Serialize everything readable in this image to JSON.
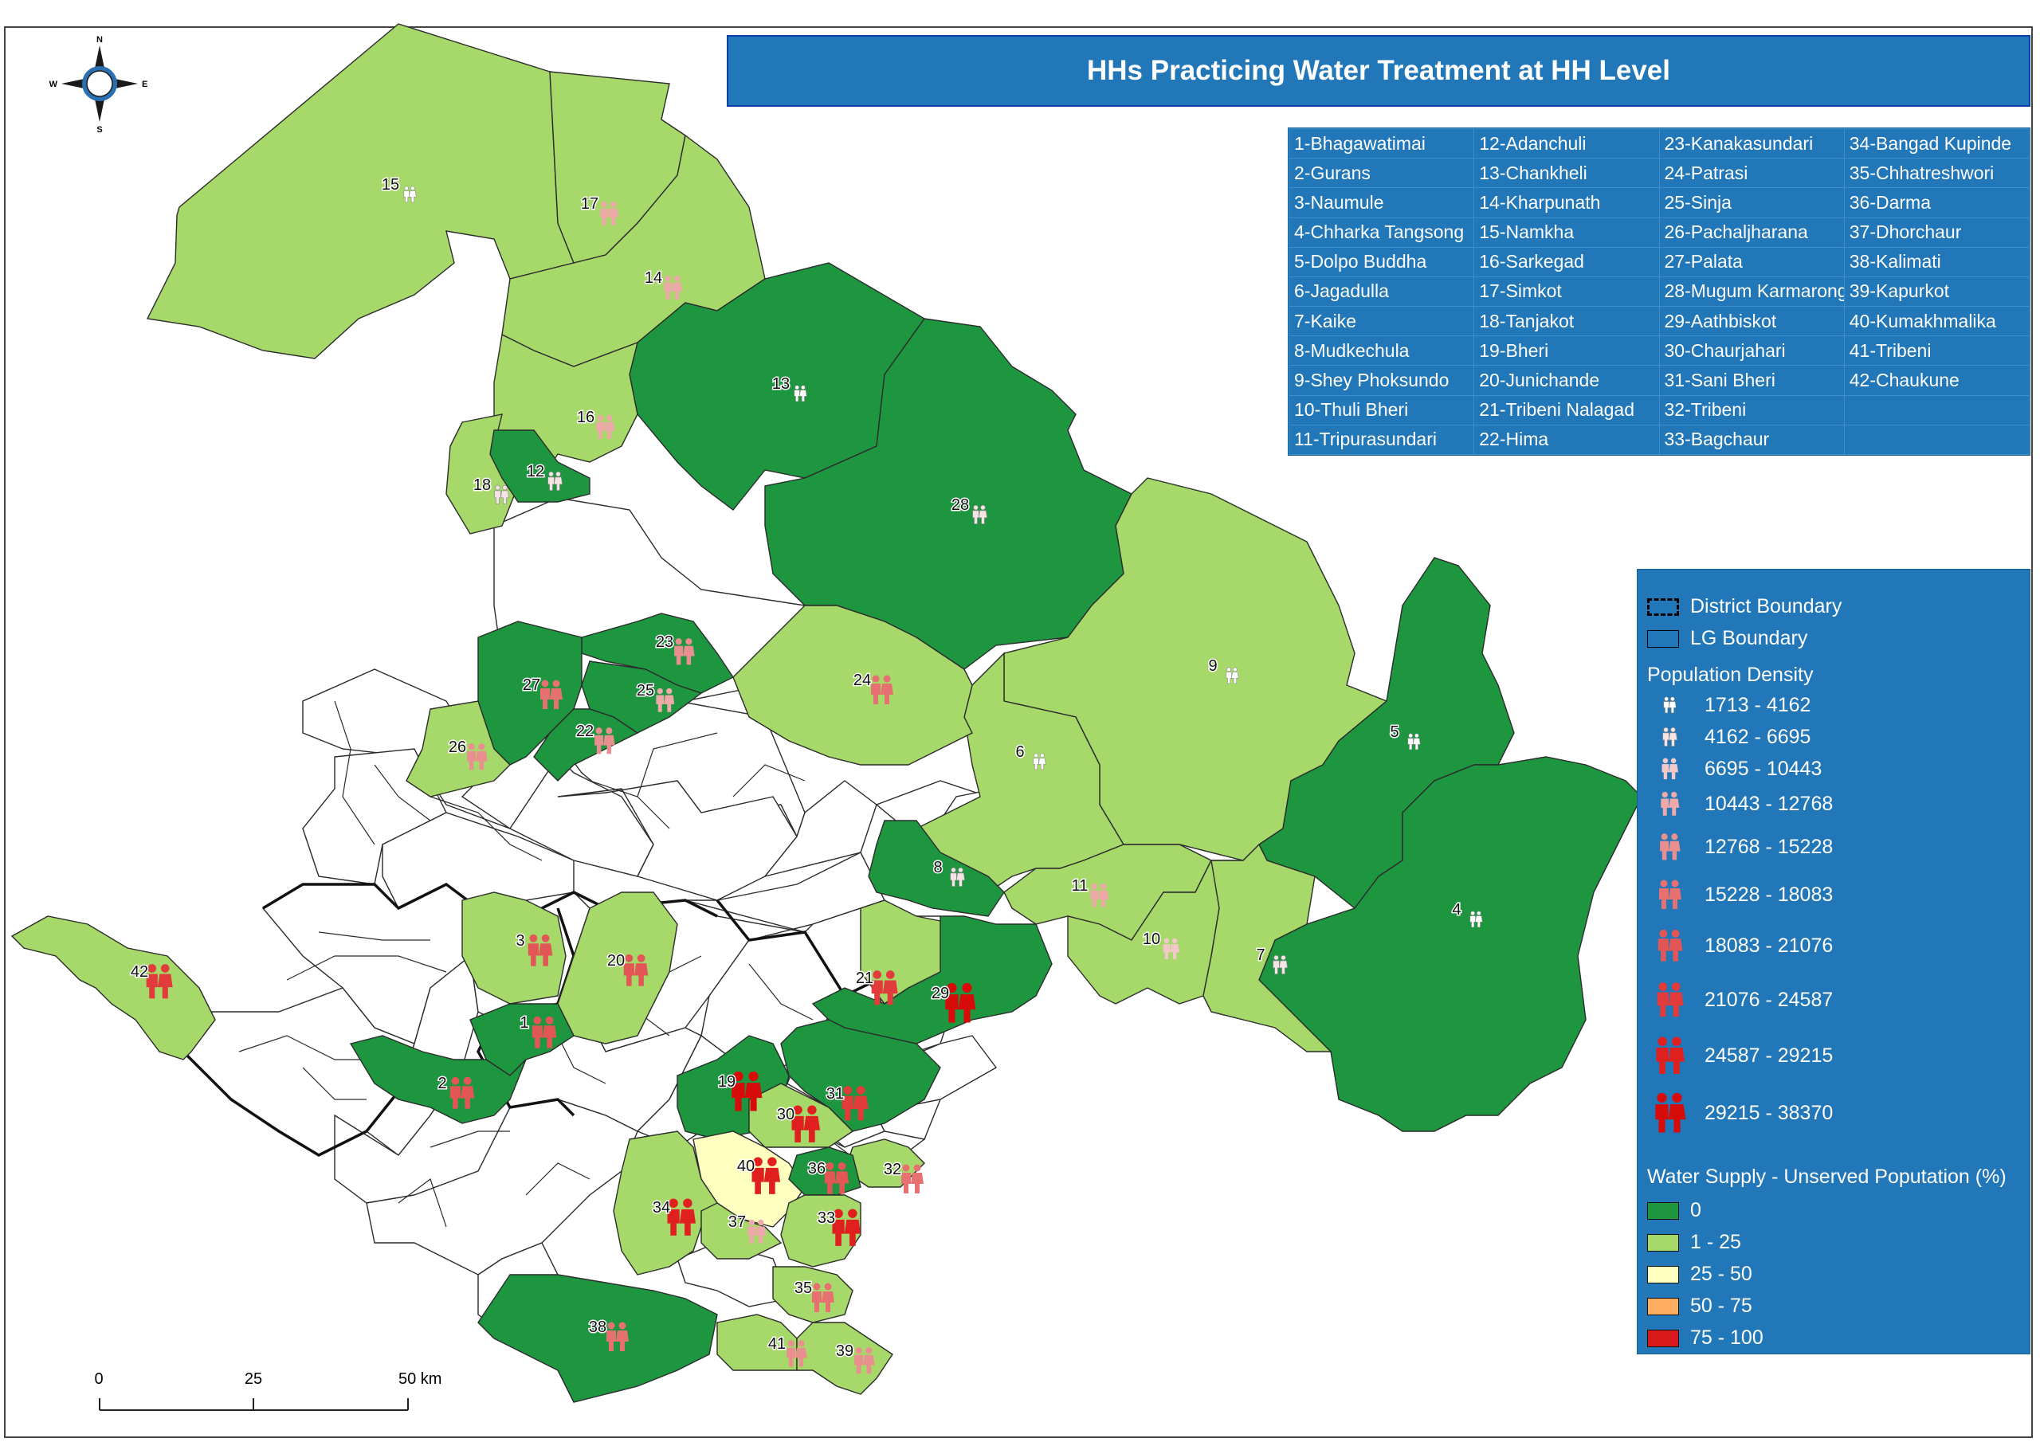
{
  "title": "HHs Practicing Water Treatment at HH Level",
  "compass": {
    "n": "N",
    "s": "S",
    "e": "E",
    "w": "W"
  },
  "scale": {
    "t0": "0",
    "t1": "25",
    "t2": "50 km"
  },
  "municipalities": [
    [
      "1-Bhagawatimai",
      "12-Adanchuli",
      "23-Kanakasundari",
      "34-Bangad Kupinde"
    ],
    [
      "2-Gurans",
      "13-Chankheli",
      "24-Patrasi",
      "35-Chhatreshwori"
    ],
    [
      "3-Naumule",
      "14-Kharpunath",
      "25-Sinja",
      "36-Darma"
    ],
    [
      "4-Chharka Tangsong",
      "15-Namkha",
      "26-Pachaljharana",
      "37-Dhorchaur"
    ],
    [
      "5-Dolpo Buddha",
      "16-Sarkegad",
      "27-Palata",
      "38-Kalimati"
    ],
    [
      "6-Jagadulla",
      "17-Simkot",
      "28-Mugum Karmarong",
      "39-Kapurkot"
    ],
    [
      "7-Kaike",
      "18-Tanjakot",
      "29-Aathbiskot",
      "40-Kumakhmalika"
    ],
    [
      "8-Mudkechula",
      "19-Bheri",
      "30-Chaurjahari",
      "41-Tribeni"
    ],
    [
      "9-Shey Phoksundo",
      "20-Junichande",
      "31-Sani Bheri",
      "42-Chaukune"
    ],
    [
      "10-Thuli Bheri",
      "21-Tribeni Nalagad",
      "32-Tribeni",
      ""
    ],
    [
      "11-Tripurasundari",
      "22-Hima",
      "33-Bagchaur",
      ""
    ]
  ],
  "legend": {
    "district_boundary": "District Boundary",
    "lg_boundary": "LG Boundary",
    "pop_title": "Population Density",
    "pop_classes": [
      "1713 - 4162",
      "4162 - 6695",
      "6695 - 10443",
      "10443 - 12768",
      "12768 - 15228",
      "15228 - 18083",
      "18083 - 21076",
      "21076 - 24587",
      "24587 - 29215",
      "29215 - 38370"
    ],
    "pop_colors": [
      "#ffffff",
      "#f4e4e4",
      "#f2c8c8",
      "#eea9a9",
      "#ea8f8f",
      "#e77171",
      "#e35656",
      "#e23b3b",
      "#e01f1f",
      "#d80b0b"
    ],
    "ws_title": "Water Supply - Unserved Poputation  (%)",
    "ws_classes": [
      {
        "label": "0",
        "color": "#1e9640"
      },
      {
        "label": "1 - 25",
        "color": "#a6d96a"
      },
      {
        "label": "25 - 50",
        "color": "#ffffc0"
      },
      {
        "label": "50 - 75",
        "color": "#fdae61"
      },
      {
        "label": "75 - 100",
        "color": "#d7191c"
      }
    ]
  },
  "regions": [
    {
      "id": "15",
      "cls": 1,
      "pop": 0
    },
    {
      "id": "17",
      "cls": 1,
      "pop": 3
    },
    {
      "id": "14",
      "cls": 1,
      "pop": 3
    },
    {
      "id": "13",
      "cls": 0,
      "pop": 0
    },
    {
      "id": "28",
      "cls": 0,
      "pop": 1
    },
    {
      "id": "16",
      "cls": 1,
      "pop": 3
    },
    {
      "id": "18",
      "cls": 1,
      "pop": 1
    },
    {
      "id": "12",
      "cls": 0,
      "pop": 1
    },
    {
      "id": "9",
      "cls": 1,
      "pop": 0
    },
    {
      "id": "5",
      "cls": 0,
      "pop": 0
    },
    {
      "id": "4",
      "cls": 0,
      "pop": 0
    },
    {
      "id": "6",
      "cls": 1,
      "pop": 0
    },
    {
      "id": "8",
      "cls": 0,
      "pop": 1
    },
    {
      "id": "11",
      "cls": 1,
      "pop": 3
    },
    {
      "id": "10",
      "cls": 1,
      "pop": 2
    },
    {
      "id": "7",
      "cls": 1,
      "pop": 1
    },
    {
      "id": "23",
      "cls": 0,
      "pop": 4
    },
    {
      "id": "25",
      "cls": 0,
      "pop": 3
    },
    {
      "id": "27",
      "cls": 0,
      "pop": 5
    },
    {
      "id": "22",
      "cls": 0,
      "pop": 4
    },
    {
      "id": "26",
      "cls": 1,
      "pop": 4
    },
    {
      "id": "24",
      "cls": 1,
      "pop": 5
    },
    {
      "id": "3",
      "cls": 1,
      "pop": 6
    },
    {
      "id": "20",
      "cls": 1,
      "pop": 6
    },
    {
      "id": "1",
      "cls": 0,
      "pop": 6
    },
    {
      "id": "2",
      "cls": 0,
      "pop": 6
    },
    {
      "id": "42",
      "cls": 1,
      "pop": 7
    },
    {
      "id": "21",
      "cls": 1,
      "pop": 7
    },
    {
      "id": "29",
      "cls": 0,
      "pop": 9
    },
    {
      "id": "19",
      "cls": 0,
      "pop": 9
    },
    {
      "id": "31",
      "cls": 0,
      "pop": 7
    },
    {
      "id": "30",
      "cls": 1,
      "pop": 8
    },
    {
      "id": "32",
      "cls": 1,
      "pop": 5
    },
    {
      "id": "40",
      "cls": 2,
      "pop": 8
    },
    {
      "id": "36",
      "cls": 0,
      "pop": 6
    },
    {
      "id": "34",
      "cls": 1,
      "pop": 8
    },
    {
      "id": "37",
      "cls": 1,
      "pop": 3
    },
    {
      "id": "33",
      "cls": 1,
      "pop": 8
    },
    {
      "id": "35",
      "cls": 1,
      "pop": 5
    },
    {
      "id": "38",
      "cls": 0,
      "pop": 5
    },
    {
      "id": "41",
      "cls": 1,
      "pop": 4
    },
    {
      "id": "39",
      "cls": 1,
      "pop": 4
    }
  ]
}
